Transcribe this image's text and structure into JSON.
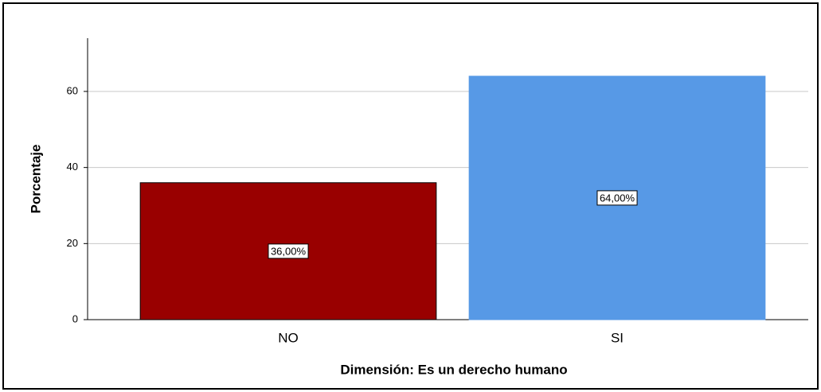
{
  "chart_data": {
    "type": "bar",
    "xlabel": "Dimensión: Es un derecho humano",
    "ylabel": "Porcentaje",
    "categories": [
      "NO",
      "SI"
    ],
    "values": [
      36,
      64
    ],
    "value_labels": [
      "36,00%",
      "64,00%"
    ],
    "colors": [
      "#990000",
      "#5799e6"
    ],
    "ylim": [
      0,
      74
    ],
    "yticks": [
      0,
      20,
      40,
      60
    ],
    "grid": true
  }
}
